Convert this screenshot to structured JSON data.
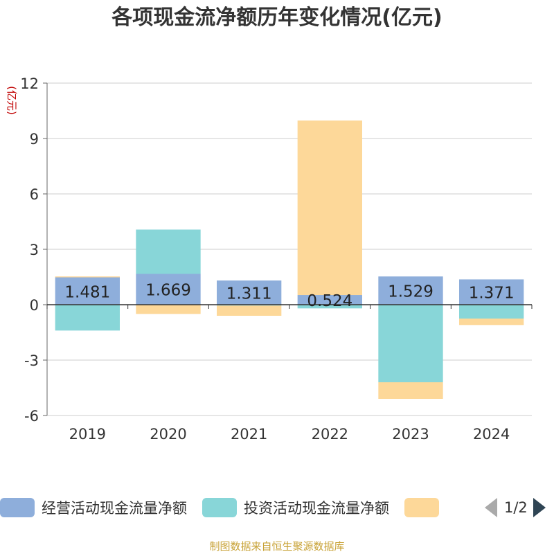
{
  "chart_data": {
    "type": "bar",
    "stacked": true,
    "title": "各项现金流净额历年变化情况(亿元)",
    "ylabel": "(亿元)",
    "xlabel": "",
    "ylim": [
      -6,
      12
    ],
    "yticks": [
      -6,
      -3,
      0,
      3,
      6,
      9,
      12
    ],
    "grid": true,
    "categories": [
      "2019",
      "2020",
      "2021",
      "2022",
      "2023",
      "2024"
    ],
    "series": [
      {
        "name": "经营活动现金流量净额",
        "color": "#8eaedb",
        "values": [
          1.481,
          1.669,
          1.311,
          0.524,
          1.529,
          1.371
        ],
        "labels": [
          "1.481",
          "1.669",
          "1.311",
          "0.524",
          "1.529",
          "1.371"
        ]
      },
      {
        "name": "投资活动现金流量净额",
        "color": "#88d6d8",
        "values": [
          -1.4,
          2.4,
          -0.05,
          -0.2,
          -4.2,
          -0.75
        ]
      },
      {
        "name": "",
        "color": "#fdd899",
        "values": [
          0.05,
          -0.5,
          -0.55,
          9.45,
          -0.9,
          -0.35
        ]
      }
    ],
    "legend_position": "bottom"
  },
  "legend": {
    "pager": "1/2"
  },
  "source": "制图数据来自恒生聚源数据库"
}
